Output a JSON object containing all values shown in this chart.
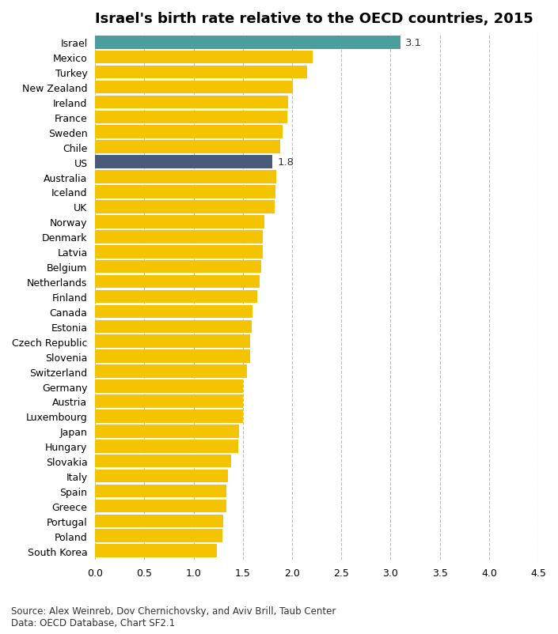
{
  "title": "Israel's birth rate relative to the OECD countries, 2015",
  "countries": [
    "Israel",
    "Mexico",
    "Turkey",
    "New Zealand",
    "Ireland",
    "France",
    "Sweden",
    "Chile",
    "US",
    "Australia",
    "Iceland",
    "UK",
    "Norway",
    "Denmark",
    "Latvia",
    "Belgium",
    "Netherlands",
    "Finland",
    "Canada",
    "Estonia",
    "Czech Republic",
    "Slovenia",
    "Switzerland",
    "Germany",
    "Austria",
    "Luxembourg",
    "Japan",
    "Hungary",
    "Slovakia",
    "Italy",
    "Spain",
    "Greece",
    "Portugal",
    "Poland",
    "South Korea"
  ],
  "values": [
    3.1,
    2.21,
    2.15,
    2.01,
    1.96,
    1.95,
    1.9,
    1.88,
    1.8,
    1.84,
    1.83,
    1.82,
    1.72,
    1.7,
    1.7,
    1.69,
    1.67,
    1.65,
    1.6,
    1.59,
    1.57,
    1.57,
    1.54,
    1.5,
    1.5,
    1.5,
    1.46,
    1.45,
    1.38,
    1.35,
    1.33,
    1.33,
    1.3,
    1.29,
    1.24
  ],
  "bar_colors": [
    "#4A9E9E",
    "#F5C400",
    "#F5C400",
    "#F5C400",
    "#F5C400",
    "#F5C400",
    "#F5C400",
    "#F5C400",
    "#4A5A7A",
    "#F5C400",
    "#F5C400",
    "#F5C400",
    "#F5C400",
    "#F5C400",
    "#F5C400",
    "#F5C400",
    "#F5C400",
    "#F5C400",
    "#F5C400",
    "#F5C400",
    "#F5C400",
    "#F5C400",
    "#F5C400",
    "#F5C400",
    "#F5C400",
    "#F5C400",
    "#F5C400",
    "#F5C400",
    "#F5C400",
    "#F5C400",
    "#F5C400",
    "#F5C400",
    "#F5C400",
    "#F5C400",
    "#F5C400"
  ],
  "labeled_countries": [
    "Israel",
    "US"
  ],
  "labels": {
    "Israel": "3.1",
    "US": "1.8"
  },
  "xlim": [
    0,
    4.5
  ],
  "xticks": [
    0.0,
    0.5,
    1.0,
    1.5,
    2.0,
    2.5,
    3.0,
    3.5,
    4.0,
    4.5
  ],
  "source_text": "Source: Alex Weinreb, Dov Chernichovsky, and Aviv Brill, Taub Center\nData: OECD Database, Chart SF2.1",
  "background_color": "#FFFFFF",
  "grid_color": "#BBBBBB",
  "title_fontsize": 13,
  "label_fontsize": 9.5,
  "tick_fontsize": 9,
  "source_fontsize": 8.5,
  "bar_height": 0.88
}
